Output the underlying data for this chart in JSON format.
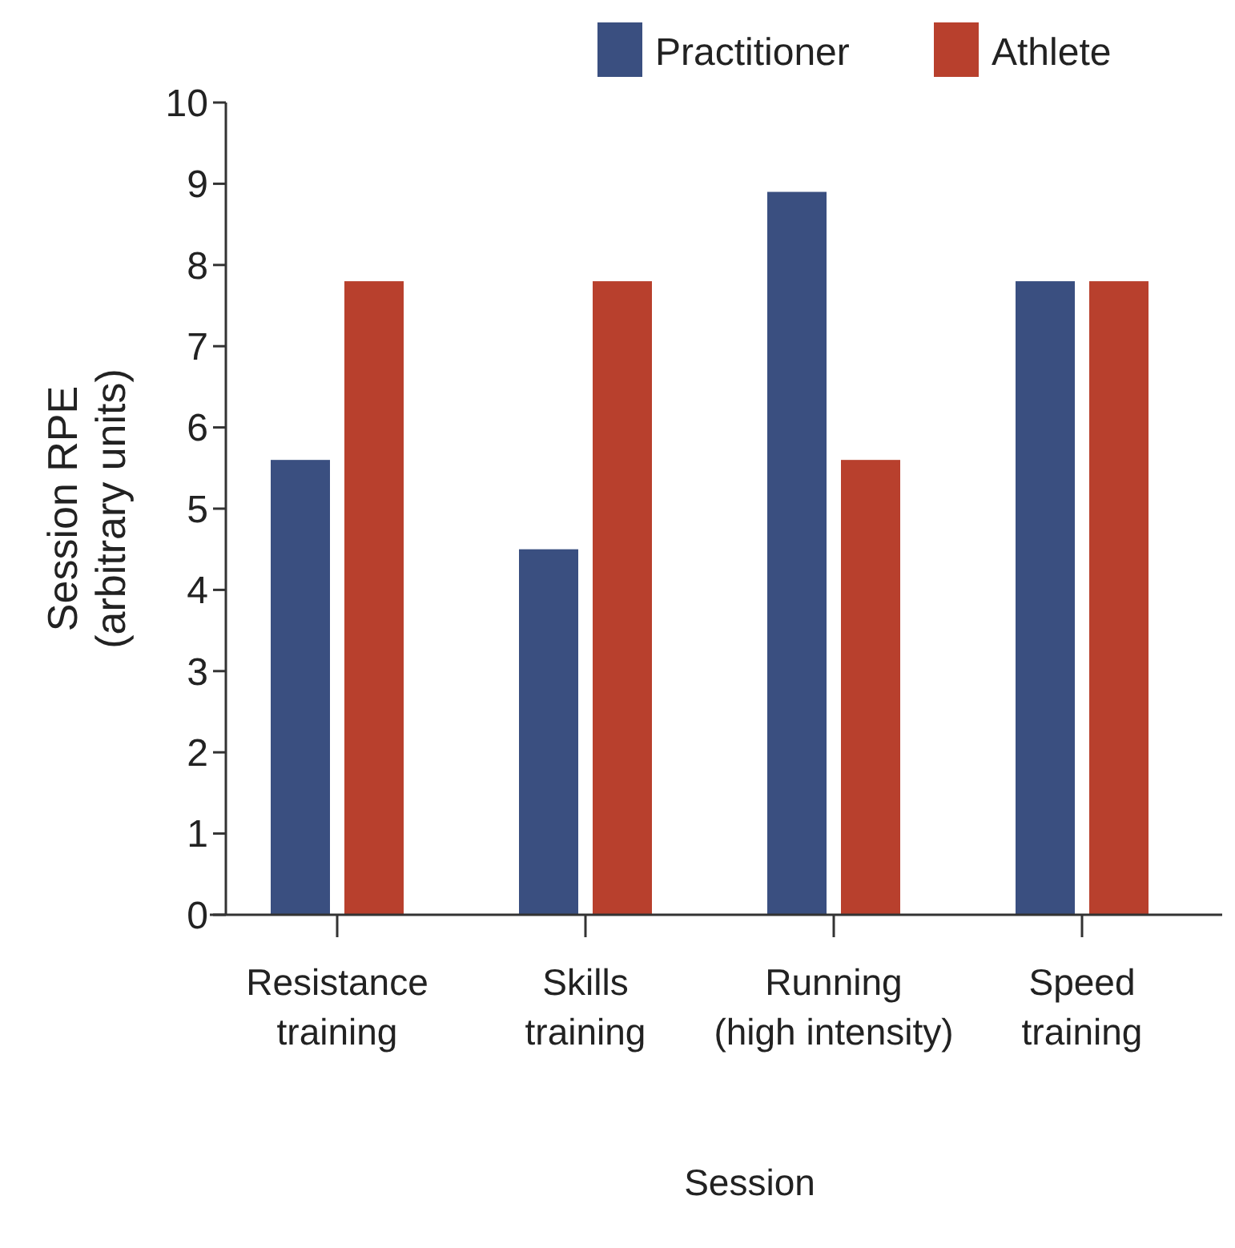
{
  "chart_data": {
    "type": "bar",
    "xlabel": "Session",
    "ylabel": "Session RPE (arbitrary units)",
    "categories": [
      "Resistance training",
      "Skills training",
      "Running (high intensity)",
      "Speed training"
    ],
    "series": [
      {
        "name": "Practitioner",
        "color": "#3a4f80",
        "values": [
          5.6,
          4.5,
          8.9,
          7.8
        ]
      },
      {
        "name": "Athlete",
        "color": "#b8402d",
        "values": [
          7.8,
          7.8,
          5.6,
          7.8
        ]
      }
    ],
    "ylim": [
      0,
      10
    ],
    "yticks": [
      0,
      1,
      2,
      3,
      4,
      5,
      6,
      7,
      8,
      9,
      10
    ],
    "grid": false,
    "legend": "top right"
  }
}
